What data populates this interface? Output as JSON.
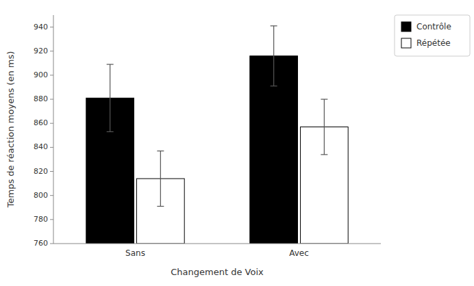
{
  "chart_data": {
    "type": "bar",
    "xlabel": "Changement de Voix",
    "ylabel": "Temps de réaction moyens (en ms)",
    "categories": [
      "Sans",
      "Avec"
    ],
    "series": [
      {
        "name": "Contrôle",
        "color": "#000000",
        "values": [
          881,
          916
        ],
        "errors": [
          28,
          25
        ]
      },
      {
        "name": "Répétée",
        "color": "#ffffff",
        "values": [
          814,
          857
        ],
        "errors": [
          23,
          23
        ]
      }
    ],
    "ylim": [
      760,
      950
    ],
    "yticks": [
      760,
      780,
      800,
      820,
      840,
      860,
      880,
      900,
      920,
      940
    ],
    "grid": false,
    "legend": "right"
  }
}
